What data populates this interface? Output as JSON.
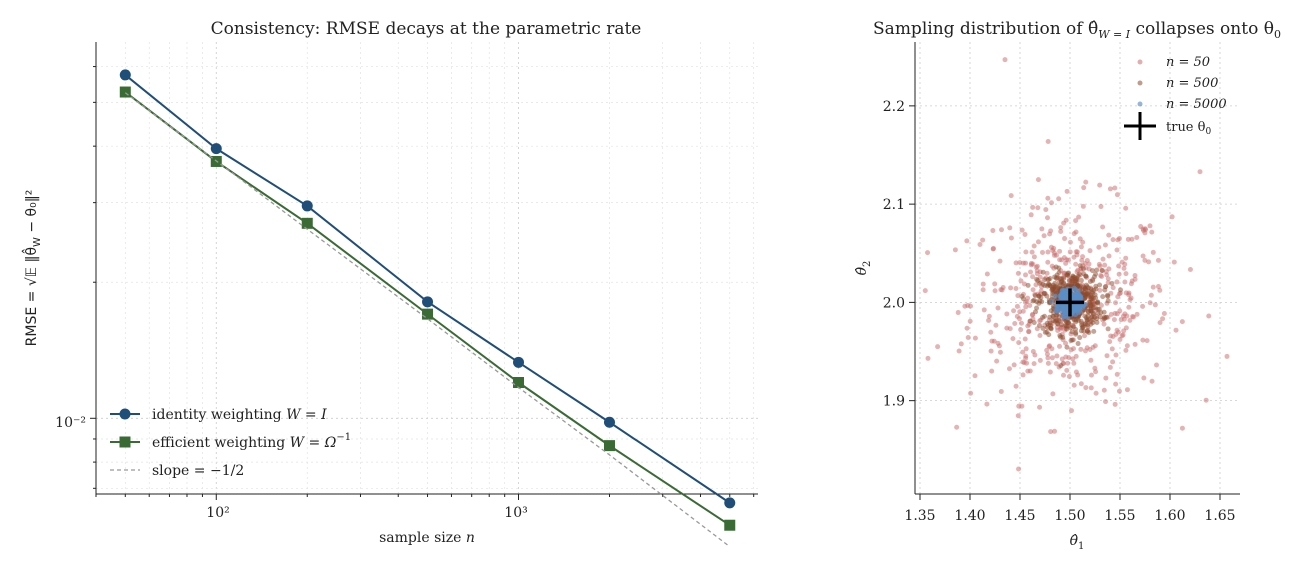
{
  "chart_data": [
    {
      "type": "line",
      "title": "Consistency: RMSE decays at the parametric rate",
      "xlabel": "sample size n",
      "ylabel": "RMSE = √(𝔼 ‖θ̂_W − θ₀‖²)",
      "xscale": "log",
      "yscale": "log",
      "x": [
        50,
        100,
        200,
        500,
        1000,
        2000,
        5000
      ],
      "xlim": [
        40,
        6200
      ],
      "ylim": [
        0.0068,
        0.068
      ],
      "x_tick_labels": [
        "10²",
        "10³"
      ],
      "y_tick_labels": [
        "10⁻²"
      ],
      "grid": true,
      "legend_position": "lower-left",
      "series": [
        {
          "name": "identity weighting W = I",
          "color": "#1f4e79",
          "marker": "circle",
          "values": [
            0.0575,
            0.0395,
            0.0295,
            0.0181,
            0.0133,
            0.0098,
            0.0065
          ]
        },
        {
          "name": "efficient weighting W = Ω⁻¹",
          "color": "#3a6b35",
          "marker": "square",
          "values": [
            0.0527,
            0.037,
            0.027,
            0.017,
            0.012,
            0.0087,
            0.0058
          ]
        },
        {
          "name": "slope = −1/2",
          "color": "#999999",
          "style": "dashed",
          "values": [
            0.0525,
            0.0371,
            0.0262,
            0.0166,
            0.0117,
            0.0083,
            0.0052
          ]
        }
      ]
    },
    {
      "type": "scatter",
      "title": "Sampling distribution of θ̂_{W=I} collapses onto θ₀",
      "xlabel": "θ̂₁",
      "ylabel": "θ̂₂",
      "xlim": [
        1.345,
        1.67
      ],
      "ylim": [
        1.805,
        2.265
      ],
      "x_ticks": [
        1.35,
        1.4,
        1.45,
        1.5,
        1.55,
        1.6,
        1.65
      ],
      "y_ticks": [
        1.9,
        2.0,
        2.1,
        2.2
      ],
      "grid": true,
      "legend_position": "top-right",
      "center": [
        1.5,
        2.0
      ],
      "series": [
        {
          "name": "n = 50",
          "color": "#c96a6a",
          "sd": [
            0.05,
            0.05
          ],
          "count": 500
        },
        {
          "name": "n = 500",
          "color": "#8b4a2b",
          "sd": [
            0.016,
            0.016
          ],
          "count": 500
        },
        {
          "name": "n = 5000",
          "color": "#5b8fc7",
          "sd": [
            0.005,
            0.005
          ],
          "count": 500
        },
        {
          "name": "true θ₀",
          "color": "#000000",
          "marker": "plus",
          "x": 1.5,
          "y": 2.0
        }
      ],
      "annotations": [
        {
          "x": 1.435,
          "y": 2.247
        },
        {
          "x": 1.358,
          "y": 1.943
        },
        {
          "x": 1.63,
          "y": 2.133
        },
        {
          "x": 1.657,
          "y": 1.945
        }
      ]
    }
  ],
  "legend_labels": {
    "identity": "identity weighting ",
    "identity_math": "W = I",
    "efficient": "efficient weighting ",
    "efficient_math": "W = Ω",
    "efficient_sup": "−1",
    "slope": "slope  = −1/2",
    "n50": "n = 50",
    "n500": "n = 500",
    "n5000": "n = 5000",
    "truth": "true θ",
    "truth_sub": "0"
  },
  "titles": {
    "left": "Consistency: RMSE decays at the parametric rate",
    "right_a": "Sampling distribution of θ̂",
    "right_sub": "W = I",
    "right_b": " collapses onto θ",
    "right_sub2": "0"
  },
  "axis_labels": {
    "left_x_a": "sample size ",
    "left_x_b": "n",
    "left_y": "RMSE = √𝔼 ‖θ̂",
    "left_y_sub": "W",
    "left_y_tail": " − θ₀‖²",
    "right_x": "θ̂",
    "right_x_sub": "1",
    "right_y": "θ̂",
    "right_y_sub": "2"
  }
}
